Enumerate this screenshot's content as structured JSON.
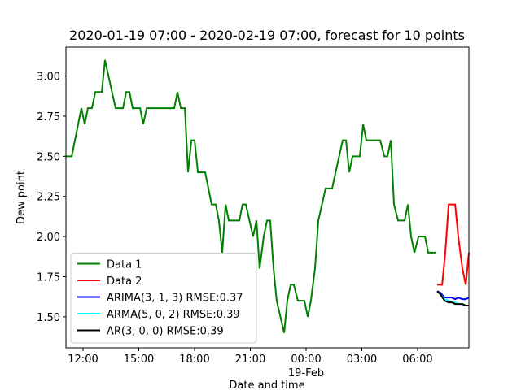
{
  "chart_data": {
    "type": "line",
    "title": "2020-01-19 07:00 - 2020-02-19 07:00, forecast for 10 points",
    "x_label": "Date and time",
    "y_label": "Dew point",
    "xlim": [
      11.08,
      32.76
    ],
    "ylim": [
      1.307,
      3.18
    ],
    "xticks": [
      {
        "value": 12,
        "label": "12:00"
      },
      {
        "value": 15,
        "label": "15:00"
      },
      {
        "value": 18,
        "label": "18:00"
      },
      {
        "value": 21,
        "label": "21:00"
      },
      {
        "value": 24,
        "label": "00:00",
        "sublabel": "19-Feb"
      },
      {
        "value": 27,
        "label": "03:00"
      },
      {
        "value": 30,
        "label": "06:00"
      }
    ],
    "yticks": [
      {
        "value": 1.5,
        "label": "1.50"
      },
      {
        "value": 1.75,
        "label": "1.75"
      },
      {
        "value": 2,
        "label": "2.00"
      },
      {
        "value": 2.25,
        "label": "2.25"
      },
      {
        "value": 2.5,
        "label": "2.50"
      },
      {
        "value": 2.75,
        "label": "2.75"
      },
      {
        "value": 3,
        "label": "3.00"
      }
    ],
    "legend": "lower left",
    "series": [
      {
        "name": "Data 1",
        "color": "#008000",
        "x": [
          11.08,
          11.39,
          11.91,
          12.09,
          12.26,
          12.48,
          12.66,
          13.01,
          13.18,
          13.75,
          14.15,
          14.32,
          14.5,
          14.67,
          15.07,
          15.24,
          15.42,
          16.91,
          17.08,
          17.26,
          17.48,
          17.65,
          17.83,
          18.0,
          18.18,
          18.57,
          18.92,
          19.14,
          19.31,
          19.49,
          19.67,
          19.84,
          20.41,
          20.58,
          20.76,
          21.15,
          21.33,
          21.5,
          21.72,
          21.9,
          22.07,
          22.25,
          22.42,
          22.82,
          22.99,
          23.17,
          23.34,
          23.56,
          23.91,
          24.09,
          24.26,
          24.48,
          24.66,
          25.05,
          25.4,
          25.97,
          26.15,
          26.32,
          26.5,
          26.89,
          27.07,
          27.24,
          27.99,
          28.21,
          28.38,
          28.56,
          28.73,
          28.95,
          29.3,
          29.48,
          29.65,
          29.83,
          30.05,
          30.4,
          30.57,
          30.97
        ],
        "values": [
          2.5,
          2.5,
          2.8,
          2.7,
          2.8,
          2.8,
          2.9,
          2.9,
          3.1,
          2.8,
          2.8,
          2.9,
          2.9,
          2.8,
          2.8,
          2.7,
          2.8,
          2.8,
          2.9,
          2.8,
          2.8,
          2.4,
          2.6,
          2.6,
          2.4,
          2.4,
          2.2,
          2.2,
          2.1,
          1.9,
          2.2,
          2.1,
          2.1,
          2.2,
          2.2,
          2.0,
          2.1,
          1.8,
          2.0,
          2.1,
          2.1,
          1.8,
          1.6,
          1.4,
          1.6,
          1.7,
          1.7,
          1.6,
          1.6,
          1.5,
          1.6,
          1.8,
          2.1,
          2.3,
          2.3,
          2.6,
          2.6,
          2.4,
          2.5,
          2.5,
          2.7,
          2.6,
          2.6,
          2.5,
          2.5,
          2.6,
          2.2,
          2.1,
          2.1,
          2.2,
          2.0,
          1.9,
          2.0,
          2.0,
          1.9,
          1.9
        ]
      },
      {
        "name": "Data 2",
        "color": "#ff0000",
        "x": [
          31.05,
          31.32,
          31.49,
          31.67,
          32.02,
          32.19,
          32.41,
          32.59,
          32.76
        ],
        "values": [
          1.7,
          1.7,
          1.9,
          2.2,
          2.2,
          2.0,
          1.8,
          1.7,
          1.9
        ]
      },
      {
        "name": "ARIMA(3, 1, 3) RMSE:0.37",
        "color": "#0000ff",
        "x": [
          31.05,
          31.23,
          31.45,
          31.67,
          31.84,
          32.02,
          32.19,
          32.41,
          32.59,
          32.76
        ],
        "values": [
          1.66,
          1.65,
          1.62,
          1.62,
          1.62,
          1.61,
          1.62,
          1.61,
          1.61,
          1.62
        ]
      },
      {
        "name": "ARMA(5, 0, 2) RMSE:0.39",
        "color": "#00ffff",
        "x": [
          31.05,
          31.23,
          31.45,
          31.67,
          31.84,
          32.02,
          32.19,
          32.41,
          32.59,
          32.76
        ],
        "values": [
          1.66,
          1.64,
          1.61,
          1.6,
          1.59,
          1.59,
          1.58,
          1.58,
          1.57,
          1.57
        ]
      },
      {
        "name": "AR(3, 0, 0) RMSE:0.39",
        "color": "#000000",
        "x": [
          31.05,
          31.23,
          31.45,
          31.67,
          31.84,
          32.02,
          32.19,
          32.41,
          32.59,
          32.76
        ],
        "values": [
          1.66,
          1.64,
          1.6,
          1.59,
          1.59,
          1.58,
          1.58,
          1.58,
          1.57,
          1.57
        ]
      }
    ]
  }
}
